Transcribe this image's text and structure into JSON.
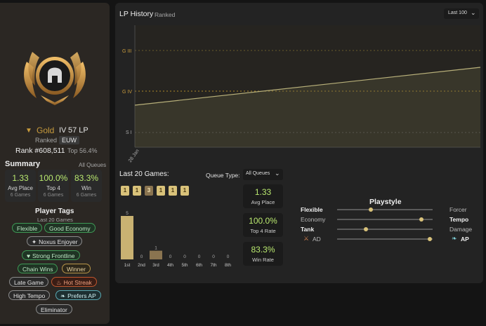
{
  "profile": {
    "tier": "Gold",
    "division": "IV",
    "lp": "57 LP",
    "queue": "Ranked",
    "region": "EUW",
    "rank": "Rank #608,511",
    "top_percent": "Top 56.4%"
  },
  "summary": {
    "title": "Summary",
    "filter": "All Queues",
    "stats": [
      {
        "value": "1.33",
        "label": "Avg Place",
        "sub": "6 Games"
      },
      {
        "value": "100.0%",
        "label": "Top 4",
        "sub": "6 Games"
      },
      {
        "value": "83.3%",
        "label": "Win",
        "sub": "6 Games"
      }
    ]
  },
  "player_tags": {
    "title": "Player Tags",
    "subtitle": "Last 20 Games",
    "tags": [
      {
        "label": "Flexible",
        "style": "green"
      },
      {
        "label": "Good Economy",
        "style": "green"
      },
      {
        "label": "Noxus Enjoyer",
        "style": "grey"
      },
      {
        "label": "Strong Frontline",
        "style": "green"
      },
      {
        "label": "Chain Wins",
        "style": "green"
      },
      {
        "label": "Winner",
        "style": "gold"
      },
      {
        "label": "Late Game",
        "style": "grey"
      },
      {
        "label": "Hot Streak",
        "style": "red"
      },
      {
        "label": "High Tempo",
        "style": "grey"
      },
      {
        "label": "Prefers AP",
        "style": "teal"
      },
      {
        "label": "Eliminator",
        "style": "grey"
      }
    ]
  },
  "lp_history": {
    "title": "LP History",
    "subtitle": "Ranked",
    "filter": "Last 100",
    "y_labels": [
      "G III",
      "G IV",
      "S I"
    ],
    "x_label": "28 Jan",
    "line": {
      "start_label": "G IV",
      "start_lp": 57
    }
  },
  "last_games": {
    "title": "Last 20 Games:",
    "queue_type_label": "Queue Type:",
    "queue_type_value": "All Queues",
    "placements": [
      "1",
      "1",
      "3",
      "1",
      "1",
      "1"
    ],
    "stats": [
      {
        "value": "1.33",
        "label": "Avg Place"
      },
      {
        "value": "100.0%",
        "label": "Top 4 Rate"
      },
      {
        "value": "83.3%",
        "label": "Win Rate"
      }
    ]
  },
  "chart_data": {
    "type": "bar",
    "categories": [
      "1st",
      "2nd",
      "3rd",
      "4th",
      "5th",
      "6th",
      "7th",
      "8th"
    ],
    "values": [
      5,
      0,
      1,
      0,
      0,
      0,
      0,
      0
    ],
    "title": "",
    "xlabel": "",
    "ylabel": ""
  },
  "playstyle": {
    "title": "Playstyle",
    "rows": [
      {
        "left": "Flexible",
        "right": "Forcer",
        "value": 0.35,
        "left_bold": true,
        "right_bold": false
      },
      {
        "left": "Economy",
        "right": "Tempo",
        "value": 0.88,
        "left_bold": false,
        "right_bold": true
      },
      {
        "left": "Tank",
        "right": "Damage",
        "value": 0.3,
        "left_bold": true,
        "right_bold": false
      },
      {
        "left": "AD",
        "right": "AP",
        "value": 0.97,
        "left_bold": false,
        "right_bold": true
      }
    ]
  },
  "colors": {
    "gold": "#c89b3c",
    "green_stat": "#b9e86f",
    "bar": "#c9b272",
    "bar_other": "#8a7450"
  },
  "icons": {
    "emblem": "helmet-emblem-icon",
    "tier": "gold-wings-icon",
    "dropdown": "chevron-down-icon",
    "noxus": "noxus-icon",
    "strong_frontline": "heart-icon",
    "hot_streak": "flame-icon",
    "prefers_ap": "feather-icon",
    "ad": "sword-icon",
    "ap": "feather-icon"
  }
}
